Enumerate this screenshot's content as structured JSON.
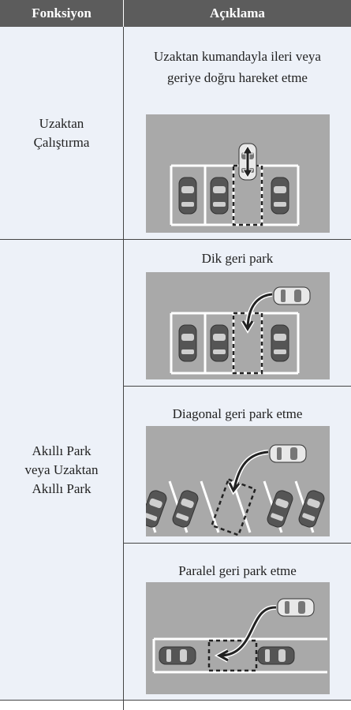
{
  "header": {
    "columns": [
      "Fonksiyon",
      "Açıklama"
    ]
  },
  "table": {
    "rows": [
      {
        "function": "Uzaktan Çalıştırma",
        "items": [
          "Uzaktan kumandayla ileri veya geriye doğru hareket etme"
        ]
      },
      {
        "function": "Akıllı Park veya Uzaktan Akıllı Park",
        "items": [
          "Dik geri park",
          "Diagonal geri park etme",
          "Paralel geri park etme"
        ]
      }
    ]
  }
}
